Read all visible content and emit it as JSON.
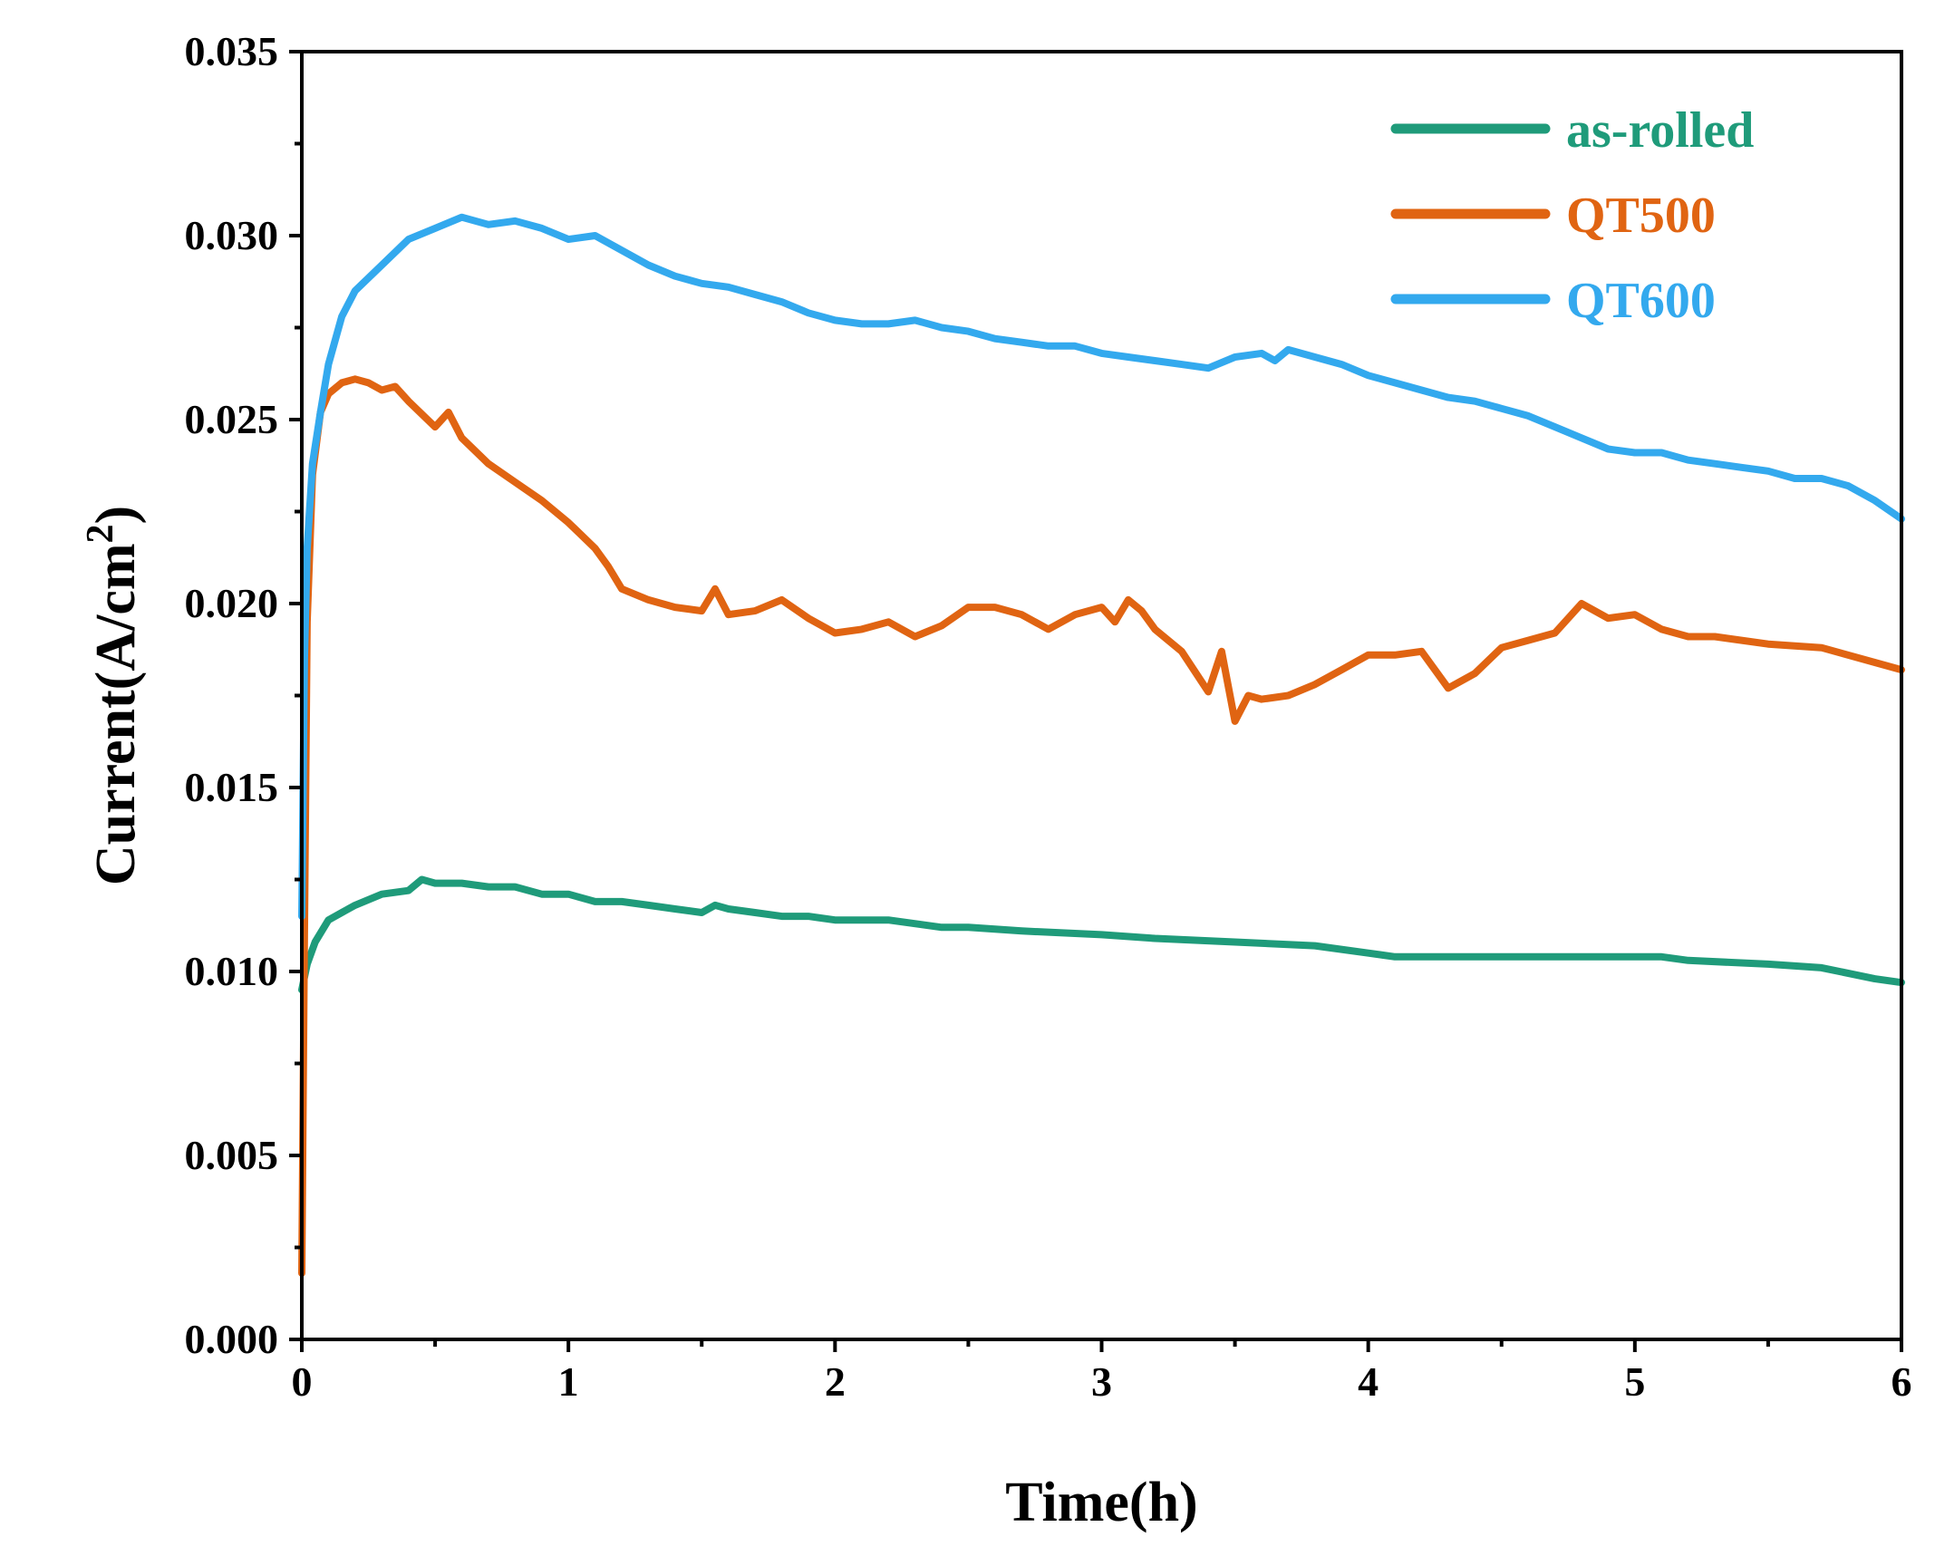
{
  "chart_data": {
    "type": "line",
    "title": "",
    "xlabel": "Time(h)",
    "ylabel": "Current(A/cm",
    "ylabel_superscript": "2",
    "ylabel_close": ")",
    "xlim": [
      0,
      6
    ],
    "ylim": [
      0,
      0.035
    ],
    "x_ticks": [
      "0",
      "1",
      "2",
      "3",
      "4",
      "5",
      "6"
    ],
    "y_ticks": [
      "0.000",
      "0.005",
      "0.010",
      "0.015",
      "0.020",
      "0.025",
      "0.030",
      "0.035"
    ],
    "grid": false,
    "legend_position": "top-right",
    "series": [
      {
        "name": "as-rolled",
        "color": "#1f9b7a",
        "x": [
          0,
          0.02,
          0.05,
          0.1,
          0.15,
          0.2,
          0.3,
          0.4,
          0.45,
          0.5,
          0.6,
          0.7,
          0.8,
          0.9,
          1.0,
          1.1,
          1.2,
          1.3,
          1.4,
          1.5,
          1.55,
          1.6,
          1.7,
          1.8,
          1.9,
          2.0,
          2.2,
          2.4,
          2.5,
          2.7,
          3.0,
          3.2,
          3.5,
          3.8,
          4.0,
          4.1,
          4.3,
          4.5,
          4.8,
          5.0,
          5.1,
          5.2,
          5.5,
          5.7,
          5.9,
          6.0
        ],
        "y": [
          0.0095,
          0.0102,
          0.0108,
          0.0114,
          0.0116,
          0.0118,
          0.0121,
          0.0122,
          0.0125,
          0.0124,
          0.0124,
          0.0123,
          0.0123,
          0.0121,
          0.0121,
          0.0119,
          0.0119,
          0.0118,
          0.0117,
          0.0116,
          0.0118,
          0.0117,
          0.0116,
          0.0115,
          0.0115,
          0.0114,
          0.0114,
          0.0112,
          0.0112,
          0.0111,
          0.011,
          0.0109,
          0.0108,
          0.0107,
          0.0105,
          0.0104,
          0.0104,
          0.0104,
          0.0104,
          0.0104,
          0.0104,
          0.0103,
          0.0102,
          0.0101,
          0.0098,
          0.0097
        ]
      },
      {
        "name": "QT500",
        "color": "#e06412",
        "x": [
          0,
          0.01,
          0.02,
          0.04,
          0.07,
          0.1,
          0.15,
          0.2,
          0.25,
          0.3,
          0.35,
          0.4,
          0.5,
          0.55,
          0.6,
          0.7,
          0.8,
          0.9,
          1.0,
          1.1,
          1.15,
          1.2,
          1.3,
          1.4,
          1.5,
          1.55,
          1.6,
          1.7,
          1.8,
          1.9,
          2.0,
          2.1,
          2.2,
          2.3,
          2.4,
          2.5,
          2.6,
          2.7,
          2.8,
          2.9,
          3.0,
          3.05,
          3.1,
          3.15,
          3.2,
          3.3,
          3.4,
          3.45,
          3.5,
          3.55,
          3.6,
          3.7,
          3.8,
          3.9,
          4.0,
          4.1,
          4.2,
          4.3,
          4.4,
          4.5,
          4.6,
          4.7,
          4.8,
          4.9,
          5.0,
          5.1,
          5.2,
          5.3,
          5.5,
          5.7,
          5.9,
          6.0
        ],
        "y": [
          0.0018,
          0.011,
          0.0195,
          0.0235,
          0.0252,
          0.0257,
          0.026,
          0.0261,
          0.026,
          0.0258,
          0.0259,
          0.0255,
          0.0248,
          0.0252,
          0.0245,
          0.0238,
          0.0233,
          0.0228,
          0.0222,
          0.0215,
          0.021,
          0.0204,
          0.0201,
          0.0199,
          0.0198,
          0.0204,
          0.0197,
          0.0198,
          0.0201,
          0.0196,
          0.0192,
          0.0193,
          0.0195,
          0.0191,
          0.0194,
          0.0199,
          0.0199,
          0.0197,
          0.0193,
          0.0197,
          0.0199,
          0.0195,
          0.0201,
          0.0198,
          0.0193,
          0.0187,
          0.0176,
          0.0187,
          0.0168,
          0.0175,
          0.0174,
          0.0175,
          0.0178,
          0.0182,
          0.0186,
          0.0186,
          0.0187,
          0.0177,
          0.0181,
          0.0188,
          0.019,
          0.0192,
          0.02,
          0.0196,
          0.0197,
          0.0193,
          0.0191,
          0.0191,
          0.0189,
          0.0188,
          0.0184,
          0.0182
        ]
      },
      {
        "name": "QT600",
        "color": "#33a9ee",
        "x": [
          0,
          0.01,
          0.02,
          0.04,
          0.07,
          0.1,
          0.15,
          0.2,
          0.3,
          0.4,
          0.5,
          0.6,
          0.7,
          0.8,
          0.9,
          1.0,
          1.1,
          1.2,
          1.3,
          1.4,
          1.5,
          1.6,
          1.7,
          1.8,
          1.9,
          2.0,
          2.1,
          2.2,
          2.3,
          2.4,
          2.5,
          2.6,
          2.7,
          2.8,
          2.9,
          3.0,
          3.1,
          3.2,
          3.3,
          3.4,
          3.5,
          3.6,
          3.65,
          3.7,
          3.8,
          3.9,
          4.0,
          4.1,
          4.2,
          4.3,
          4.4,
          4.5,
          4.6,
          4.7,
          4.8,
          4.9,
          5.0,
          5.1,
          5.2,
          5.3,
          5.4,
          5.5,
          5.6,
          5.7,
          5.8,
          5.9,
          6.0
        ],
        "y": [
          0.0115,
          0.0185,
          0.0215,
          0.0238,
          0.0252,
          0.0265,
          0.0278,
          0.0285,
          0.0292,
          0.0299,
          0.0302,
          0.0305,
          0.0303,
          0.0304,
          0.0302,
          0.0299,
          0.03,
          0.0296,
          0.0292,
          0.0289,
          0.0287,
          0.0286,
          0.0284,
          0.0282,
          0.0279,
          0.0277,
          0.0276,
          0.0276,
          0.0277,
          0.0275,
          0.0274,
          0.0272,
          0.0271,
          0.027,
          0.027,
          0.0268,
          0.0267,
          0.0266,
          0.0265,
          0.0264,
          0.0267,
          0.0268,
          0.0266,
          0.0269,
          0.0267,
          0.0265,
          0.0262,
          0.026,
          0.0258,
          0.0256,
          0.0255,
          0.0253,
          0.0251,
          0.0248,
          0.0245,
          0.0242,
          0.0241,
          0.0241,
          0.0239,
          0.0238,
          0.0237,
          0.0236,
          0.0234,
          0.0234,
          0.0232,
          0.0228,
          0.0223
        ]
      }
    ]
  }
}
